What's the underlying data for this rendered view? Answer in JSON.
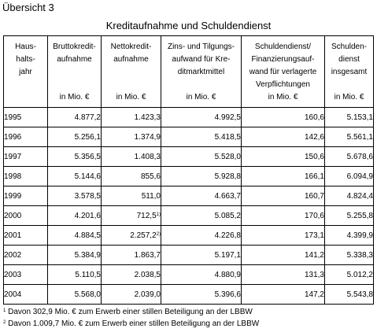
{
  "overview_label": "Übersicht 3",
  "table_title": "Kreditaufnahme und Schuldendienst",
  "headers": [
    {
      "lines": [
        "Haus-",
        "halts-",
        "jahr"
      ],
      "unit": ""
    },
    {
      "lines": [
        "Bruttokredit-",
        "aufnahme"
      ],
      "unit": "in Mio. €"
    },
    {
      "lines": [
        "Nettokredit-",
        "aufnahme"
      ],
      "unit": "in Mio. €"
    },
    {
      "lines": [
        "Zins- und Tilgungs-",
        "aufwand für Kre-",
        "ditmarktmittel"
      ],
      "unit": "in Mio. €"
    },
    {
      "lines": [
        "Schuldendienst/",
        "Finanzierungsauf-",
        "wand für verlagerte",
        "Verpflichtungen"
      ],
      "unit": "in Mio. €"
    },
    {
      "lines": [
        "Schulden-",
        "dienst",
        "insgesamt"
      ],
      "unit": "in Mio. €"
    }
  ],
  "rows": [
    {
      "year": "1995",
      "brutto": "4.877,2",
      "netto": "1.423,3",
      "netto_note": "",
      "zins": "4.992,5",
      "schuld": "160,6",
      "gesamt": "5.153,1"
    },
    {
      "year": "1996",
      "brutto": "5.256,1",
      "netto": "1.374,9",
      "netto_note": "",
      "zins": "5.418,5",
      "schuld": "142,6",
      "gesamt": "5.561,1"
    },
    {
      "year": "1997",
      "brutto": "5.356,5",
      "netto": "1.408,3",
      "netto_note": "",
      "zins": "5.528,0",
      "schuld": "150,6",
      "gesamt": "5.678,6"
    },
    {
      "year": "1998",
      "brutto": "5.144,6",
      "netto": "855,6",
      "netto_note": "",
      "zins": "5.928,8",
      "schuld": "166,1",
      "gesamt": "6.094,9"
    },
    {
      "year": "1999",
      "brutto": "3.578,5",
      "netto": "511,0",
      "netto_note": "",
      "zins": "4.663,7",
      "schuld": "160,7",
      "gesamt": "4.824,4"
    },
    {
      "year": "2000",
      "brutto": "4.201,6",
      "netto": "712,5",
      "netto_note": "1)",
      "zins": "5.085,2",
      "schuld": "170,6",
      "gesamt": "5.255,8"
    },
    {
      "year": "2001",
      "brutto": "4.884,5",
      "netto": "2.257,2",
      "netto_note": "2)",
      "zins": "4.226,8",
      "schuld": "173,1",
      "gesamt": "4.399,9"
    },
    {
      "year": "2002",
      "brutto": "5.384,9",
      "netto": "1.863,7",
      "netto_note": "",
      "zins": "5.197,1",
      "schuld": "141,2",
      "gesamt": "5.338,3"
    },
    {
      "year": "2003",
      "brutto": "5.110,5",
      "netto": "2.038,5",
      "netto_note": "",
      "zins": "4.880,9",
      "schuld": "131,3",
      "gesamt": "5.012,2"
    },
    {
      "year": "2004",
      "brutto": "5.568,0",
      "netto": "2.039,0",
      "netto_note": "",
      "zins": "5.396,6",
      "schuld": "147,2",
      "gesamt": "5.543,8"
    }
  ],
  "footnotes": [
    {
      "mark": "1",
      "text": "Davon 302,9 Mio. € zum Erwerb einer stillen Beteiligung an der LBBW"
    },
    {
      "mark": "2",
      "text": "Davon 1.009,7 Mio. € zum Erwerb einer stillen Beteiligung an der LBBW"
    }
  ]
}
